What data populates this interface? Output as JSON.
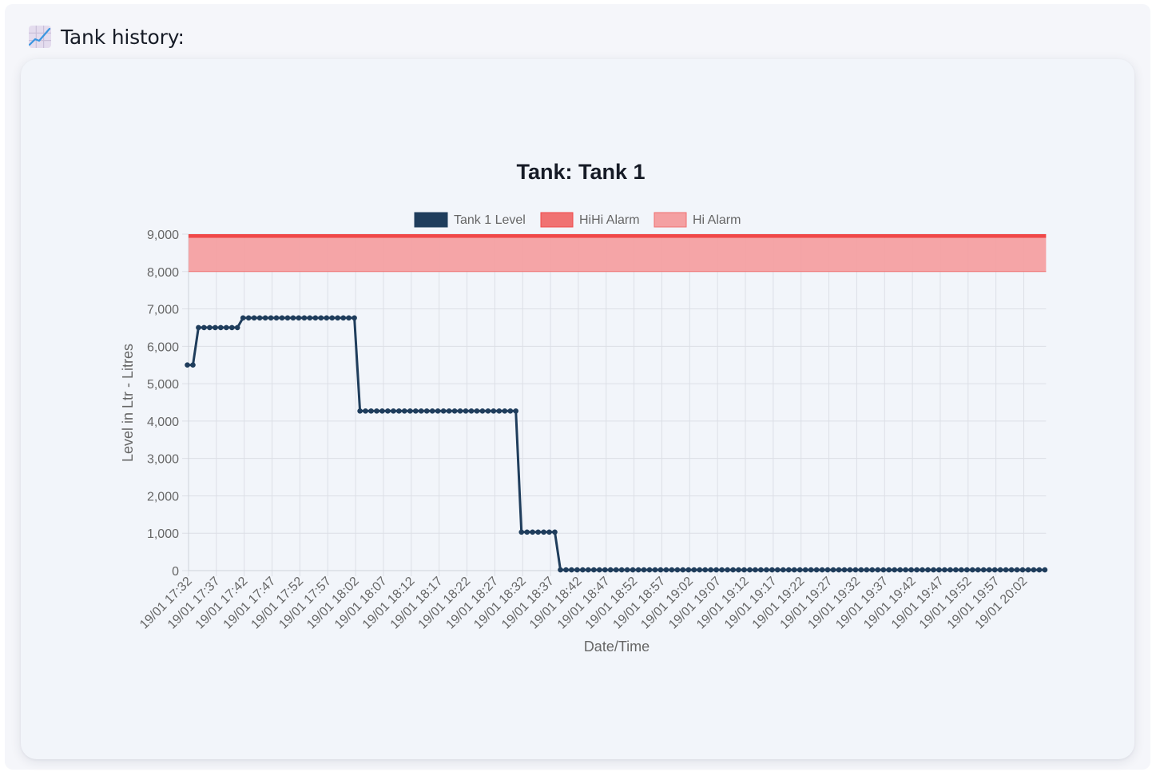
{
  "page": {
    "heading": "Tank history:",
    "heading_icon": "chart-increasing-icon"
  },
  "colors": {
    "level_line": "#1f3d5c",
    "hihi_fill": "#f07272",
    "hihi_border": "#f04848",
    "hi_fill": "#f4a0a2",
    "hi_border": "#f07070",
    "grid": "#dcdfe6",
    "tick_text": "#666666",
    "title_text": "#161b26"
  },
  "chart_data": {
    "type": "line",
    "title": "Tank: Tank 1",
    "xlabel": "Date/Time",
    "ylabel": "Level in Ltr - Litres",
    "ylim": [
      0,
      9000
    ],
    "y_ticks": [
      "0",
      "1,000",
      "2,000",
      "3,000",
      "4,000",
      "5,000",
      "6,000",
      "7,000",
      "8,000",
      "9,000"
    ],
    "x_tick_labels": [
      "19/01 17:32",
      "19/01 17:37",
      "19/01 17:42",
      "19/01 17:47",
      "19/01 17:52",
      "19/01 17:57",
      "19/01 18:02",
      "19/01 18:07",
      "19/01 18:12",
      "19/01 18:17",
      "19/01 18:22",
      "19/01 18:27",
      "19/01 18:32",
      "19/01 18:37",
      "19/01 18:42",
      "19/01 18:47",
      "19/01 18:52",
      "19/01 18:57",
      "19/01 19:02",
      "19/01 19:07",
      "19/01 19:12",
      "19/01 19:17",
      "19/01 19:22",
      "19/01 19:27",
      "19/01 19:32",
      "19/01 19:37",
      "19/01 19:42",
      "19/01 19:47",
      "19/01 19:52",
      "19/01 19:57",
      "19/01 20:02"
    ],
    "x_start": "19/01 17:32",
    "x_end": "19/01 20:06",
    "x_interval_minutes": 1,
    "grid": true,
    "legend_position": "top",
    "legend": [
      "Tank 1 Level",
      "HiHi Alarm",
      "Hi Alarm"
    ],
    "series": [
      {
        "name": "Tank 1 Level",
        "type": "line",
        "segments": [
          {
            "from": "17:32",
            "to": "17:33",
            "count": 2,
            "value": 5500
          },
          {
            "from": "17:34",
            "to": "17:41",
            "count": 8,
            "value": 6500
          },
          {
            "from": "17:42",
            "to": "18:02",
            "count": 21,
            "value": 6760
          },
          {
            "from": "18:03",
            "to": "18:31",
            "count": 29,
            "value": 4270
          },
          {
            "from": "18:32",
            "to": "18:38",
            "count": 7,
            "value": 1030
          },
          {
            "from": "18:39",
            "to": "20:06",
            "count": 88,
            "value": 20
          }
        ]
      },
      {
        "name": "HiHi Alarm",
        "type": "band",
        "from": 8900,
        "to": 9000
      },
      {
        "name": "Hi Alarm",
        "type": "band",
        "from": 8000,
        "to": 8900
      }
    ]
  }
}
